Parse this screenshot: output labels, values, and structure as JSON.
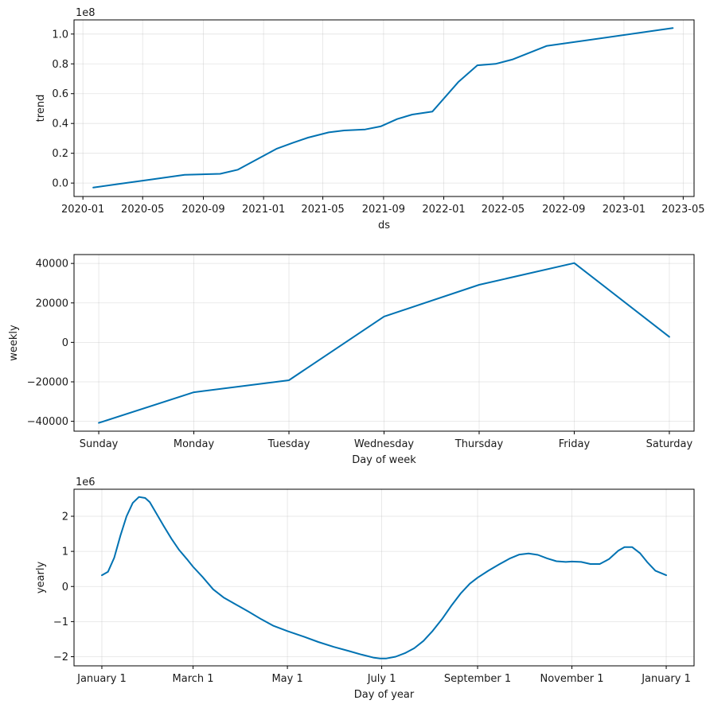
{
  "colors": {
    "series": "#0072b2",
    "axis": "#000000",
    "grid": "#b0b0b0"
  },
  "chart_data": [
    {
      "type": "line",
      "title": "",
      "xlabel": "ds",
      "ylabel": "trend",
      "offset_label": "1e8",
      "grid": true,
      "x_type": "date",
      "xlim": [
        "2019-12-14",
        "2023-05-23"
      ],
      "ylim": [
        -0.09,
        1.095
      ],
      "x_ticks": [
        "2020-01",
        "2020-05",
        "2020-09",
        "2021-01",
        "2021-05",
        "2021-09",
        "2022-01",
        "2022-05",
        "2022-09",
        "2023-01",
        "2023-05"
      ],
      "x_tick_values": [
        "2020-01-01",
        "2020-05-01",
        "2020-09-01",
        "2021-01-01",
        "2021-05-01",
        "2021-09-01",
        "2022-01-01",
        "2022-05-01",
        "2022-09-01",
        "2023-01-01",
        "2023-05-01"
      ],
      "y_ticks": [
        "0.0",
        "0.2",
        "0.4",
        "0.6",
        "0.8",
        "1.0"
      ],
      "y_tick_values": [
        0.0,
        0.2,
        0.4,
        0.6,
        0.8,
        1.0
      ],
      "series": [
        {
          "x": [
            "2020-01-22",
            "2020-03-15",
            "2020-05-20",
            "2020-07-25",
            "2020-10-05",
            "2020-11-10",
            "2021-01-27",
            "2021-03-01",
            "2021-04-01",
            "2021-05-13",
            "2021-06-13",
            "2021-07-26",
            "2021-08-26",
            "2021-09-29",
            "2021-10-29",
            "2021-12-09",
            "2022-01-31",
            "2022-03-10",
            "2022-04-16",
            "2022-05-21",
            "2022-07-28",
            "2023-04-10"
          ],
          "y": [
            -0.03,
            -0.005,
            0.025,
            0.055,
            0.062,
            0.09,
            0.23,
            0.27,
            0.305,
            0.34,
            0.353,
            0.36,
            0.38,
            0.43,
            0.46,
            0.48,
            0.68,
            0.79,
            0.8,
            0.83,
            0.92,
            1.04
          ]
        }
      ]
    },
    {
      "type": "line",
      "title": "",
      "xlabel": "Day of week",
      "ylabel": "weekly",
      "grid": true,
      "categories": [
        "Sunday",
        "Monday",
        "Tuesday",
        "Wednesday",
        "Thursday",
        "Friday",
        "Saturday"
      ],
      "xlim": [
        -0.26,
        6.26
      ],
      "ylim": [
        -45000,
        44500
      ],
      "y_ticks": [
        "−40000",
        "−20000",
        "0",
        "20000",
        "40000"
      ],
      "y_tick_values": [
        -40000,
        -20000,
        0,
        20000,
        40000
      ],
      "series": [
        {
          "values": [
            -40800,
            -25300,
            -19200,
            13100,
            29200,
            40200,
            2800
          ]
        }
      ]
    },
    {
      "type": "line",
      "title": "",
      "xlabel": "Day of year",
      "ylabel": "yearly",
      "offset_label": "1e6",
      "grid": true,
      "x_type": "dayofyear",
      "xlim": [
        -18,
        383
      ],
      "ylim": [
        -2.26,
        2.77
      ],
      "x_ticks": [
        "January 1",
        "March 1",
        "May 1",
        "July 1",
        "September 1",
        "November 1",
        "January 1"
      ],
      "x_tick_values": [
        0,
        59,
        120,
        181,
        243,
        304,
        365
      ],
      "y_ticks": [
        "−2",
        "−1",
        "0",
        "1",
        "2"
      ],
      "y_tick_values": [
        -2,
        -1,
        0,
        1,
        2
      ],
      "series": [
        {
          "x": [
            0,
            4,
            8,
            12,
            16,
            20,
            24,
            28,
            31,
            35,
            40,
            45,
            50,
            55,
            59,
            65,
            72,
            79,
            87,
            95,
            103,
            111,
            120,
            130,
            140,
            150,
            160,
            168,
            176,
            180,
            184,
            190,
            196,
            202,
            208,
            214,
            220,
            226,
            232,
            238,
            243,
            250,
            257,
            264,
            270,
            276,
            282,
            288,
            294,
            300,
            304,
            310,
            316,
            322,
            328,
            334,
            338,
            343,
            348,
            353,
            358,
            365
          ],
          "y": [
            0.32,
            0.42,
            0.82,
            1.45,
            2.0,
            2.38,
            2.55,
            2.52,
            2.4,
            2.1,
            1.72,
            1.36,
            1.04,
            0.78,
            0.56,
            0.28,
            -0.08,
            -0.32,
            -0.52,
            -0.72,
            -0.93,
            -1.12,
            -1.27,
            -1.42,
            -1.58,
            -1.72,
            -1.84,
            -1.94,
            -2.03,
            -2.05,
            -2.05,
            -2.0,
            -1.9,
            -1.76,
            -1.55,
            -1.26,
            -0.93,
            -0.55,
            -0.2,
            0.08,
            0.25,
            0.45,
            0.63,
            0.8,
            0.91,
            0.94,
            0.9,
            0.8,
            0.72,
            0.7,
            0.71,
            0.7,
            0.64,
            0.64,
            0.78,
            1.02,
            1.12,
            1.12,
            0.95,
            0.68,
            0.45,
            0.32
          ]
        }
      ]
    }
  ]
}
